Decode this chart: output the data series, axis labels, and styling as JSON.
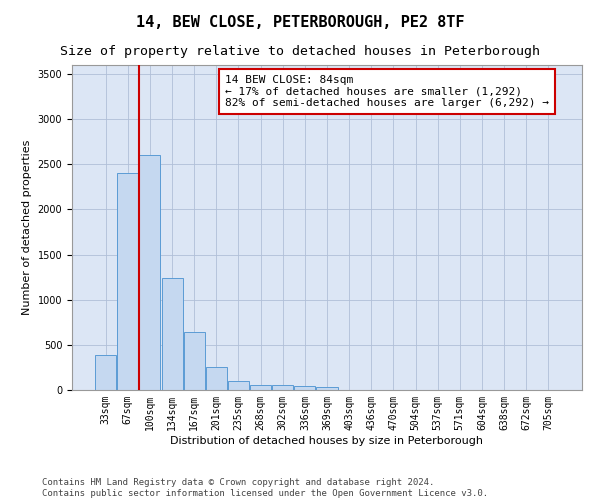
{
  "title": "14, BEW CLOSE, PETERBOROUGH, PE2 8TF",
  "subtitle": "Size of property relative to detached houses in Peterborough",
  "xlabel": "Distribution of detached houses by size in Peterborough",
  "ylabel": "Number of detached properties",
  "categories": [
    "33sqm",
    "67sqm",
    "100sqm",
    "134sqm",
    "167sqm",
    "201sqm",
    "235sqm",
    "268sqm",
    "302sqm",
    "336sqm",
    "369sqm",
    "403sqm",
    "436sqm",
    "470sqm",
    "504sqm",
    "537sqm",
    "571sqm",
    "604sqm",
    "638sqm",
    "672sqm",
    "705sqm"
  ],
  "values": [
    390,
    2400,
    2600,
    1240,
    640,
    260,
    95,
    60,
    58,
    45,
    30,
    0,
    0,
    0,
    0,
    0,
    0,
    0,
    0,
    0,
    0
  ],
  "bar_color": "#c5d8f0",
  "bar_edge_color": "#5b9bd5",
  "bar_alpha": 1.0,
  "vline_x": 1.5,
  "vline_color": "#cc0000",
  "annotation_box_text": "14 BEW CLOSE: 84sqm\n← 17% of detached houses are smaller (1,292)\n82% of semi-detached houses are larger (6,292) →",
  "ylim": [
    0,
    3600
  ],
  "yticks": [
    0,
    500,
    1000,
    1500,
    2000,
    2500,
    3000,
    3500
  ],
  "background_color": "#ffffff",
  "plot_bg_color": "#dce6f5",
  "grid_color": "#b0bfd8",
  "footer_line1": "Contains HM Land Registry data © Crown copyright and database right 2024.",
  "footer_line2": "Contains public sector information licensed under the Open Government Licence v3.0.",
  "title_fontsize": 11,
  "subtitle_fontsize": 9.5,
  "axis_label_fontsize": 8,
  "tick_fontsize": 7,
  "annotation_fontsize": 8,
  "footer_fontsize": 6.5
}
